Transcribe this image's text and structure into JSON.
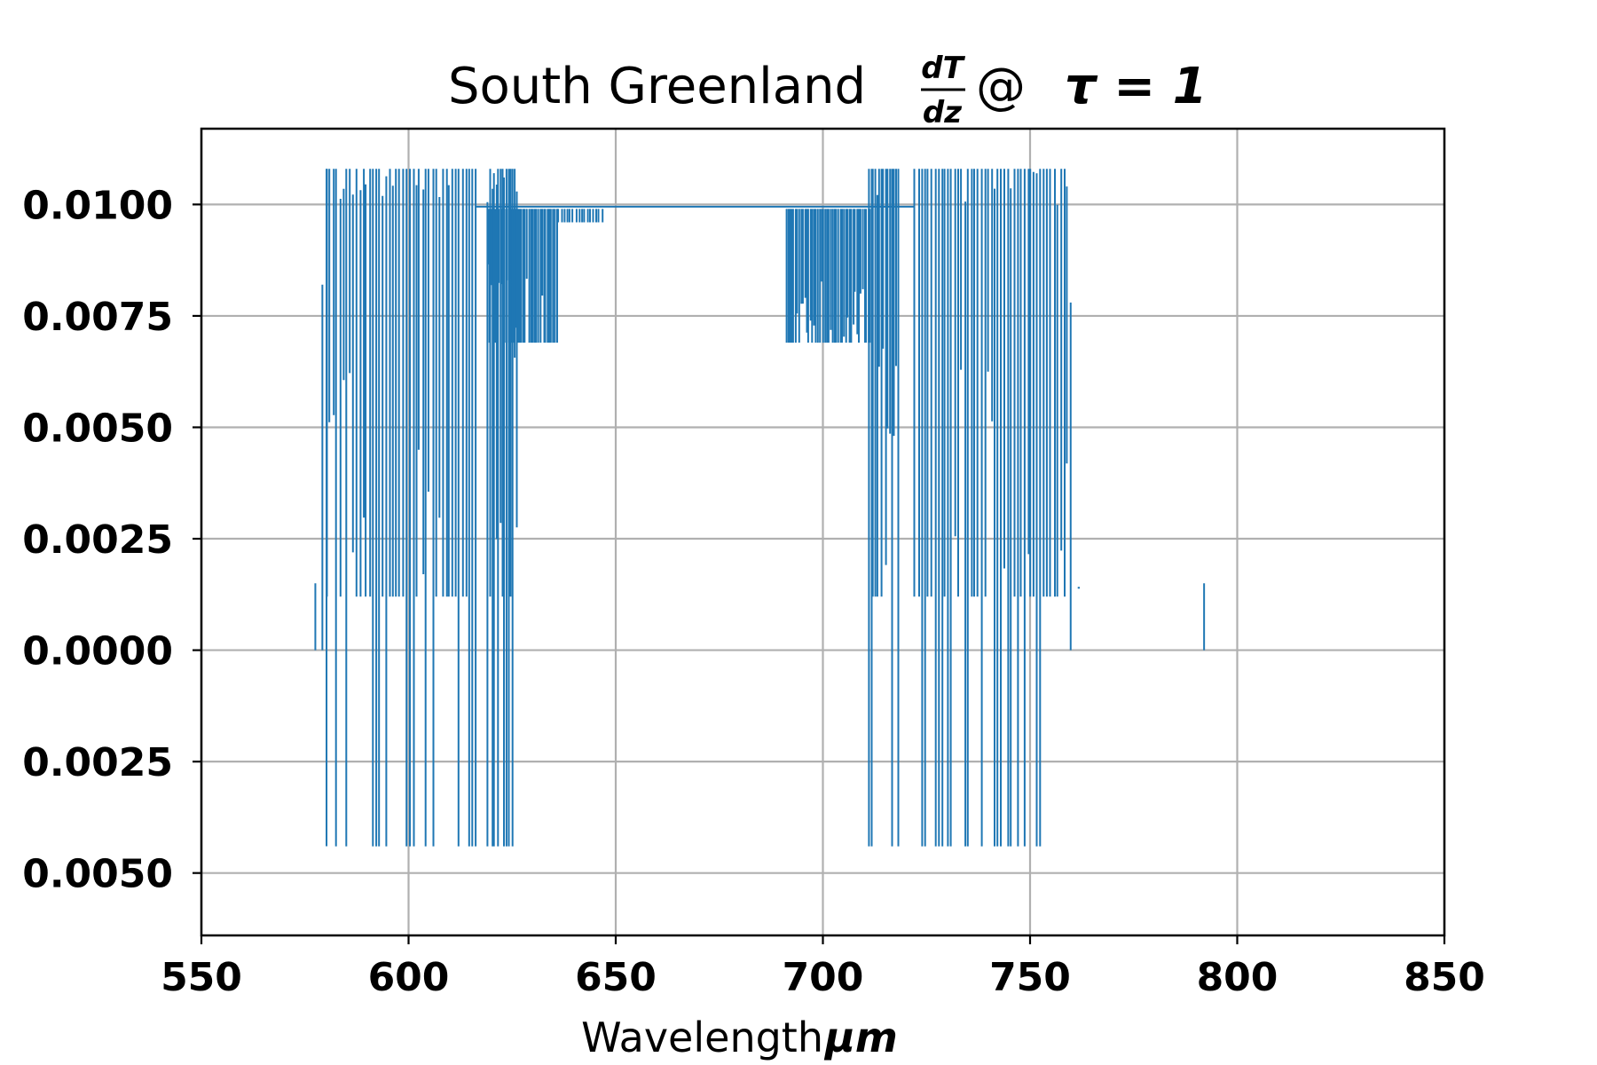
{
  "chart_data": {
    "type": "line",
    "title": {
      "prefix": "South Greenland ",
      "frac_num": "dT",
      "frac_den": "dz",
      "at": " @ ",
      "tau": "τ = 1"
    },
    "xlabel": {
      "text": "Wavelength ",
      "unit": "μm"
    },
    "ylabel": "",
    "xlim": [
      550,
      850
    ],
    "ylim": [
      -0.0064,
      0.0117
    ],
    "grid": true,
    "line_color": "#1f77b4",
    "x_ticks": [
      550,
      600,
      650,
      700,
      750,
      800,
      850
    ],
    "x_tick_labels": [
      "550",
      "600",
      "650",
      "700",
      "750",
      "800",
      "850"
    ],
    "y_ticks": [
      0.01,
      0.0075,
      0.005,
      0.0025,
      0.0,
      -0.0025,
      -0.005
    ],
    "y_tick_labels": [
      "0.0100",
      "0.0075",
      "0.0050",
      "0.0025",
      "0.0000",
      "0.0025",
      "0.0050"
    ],
    "levels": {
      "top": 0.0108,
      "plateau": 0.00995,
      "mid": 0.0082,
      "bottom": -0.0044,
      "min": -0.0044
    },
    "series": [
      {
        "segments": [
          {
            "x": [
              577.5,
              577.5
            ],
            "y": [
              0.0015,
              0.0
            ]
          },
          {
            "x": [
              579.2,
              579.2
            ],
            "y": [
              0.0082,
              0.0
            ]
          },
          {
            "x": [
              580.2,
              580.2
            ],
            "y": [
              0.0108,
              -0.0044
            ]
          },
          {
            "x": [
              792.0,
              792.0
            ],
            "y": [
              0.0015,
              0.0
            ]
          },
          {
            "x": [
              761.5,
              762.0
            ],
            "y": [
              0.0014,
              0.0014
            ]
          },
          {
            "x": [
              759.8,
              759.8
            ],
            "y": [
              0.0078,
              0.0
            ]
          }
        ],
        "bands": [
          {
            "x_start": 580,
            "x_end": 616,
            "y_top": 0.0108,
            "y_bottom": 0.0012,
            "y_deep": -0.0044,
            "step": 0.8
          },
          {
            "x_start": 619,
            "x_end": 626,
            "y_top": 0.0108,
            "y_bottom": 0.0012,
            "y_deep": -0.0044,
            "step": 0.5
          },
          {
            "x_start": 619,
            "x_end": 636,
            "y_top": 0.0099,
            "y_bottom": 0.0069,
            "y_deep": 0.0069,
            "step": 0.45
          },
          {
            "x_start": 636,
            "x_end": 647,
            "y_top": 0.0099,
            "y_bottom": 0.0096,
            "y_deep": 0.0096,
            "step": 0.7
          },
          {
            "x_start": 691,
            "x_end": 712,
            "y_top": 0.0099,
            "y_bottom": 0.0069,
            "y_deep": 0.0069,
            "step": 0.45
          },
          {
            "x_start": 711,
            "x_end": 718,
            "y_top": 0.0108,
            "y_bottom": 0.0012,
            "y_deep": -0.0044,
            "step": 0.5
          },
          {
            "x_start": 722,
            "x_end": 759,
            "y_top": 0.0108,
            "y_bottom": 0.0012,
            "y_deep": -0.0044,
            "step": 0.8
          }
        ],
        "plateau": {
          "x_start": 616,
          "x_end": 722,
          "y": 0.00995
        }
      }
    ]
  }
}
